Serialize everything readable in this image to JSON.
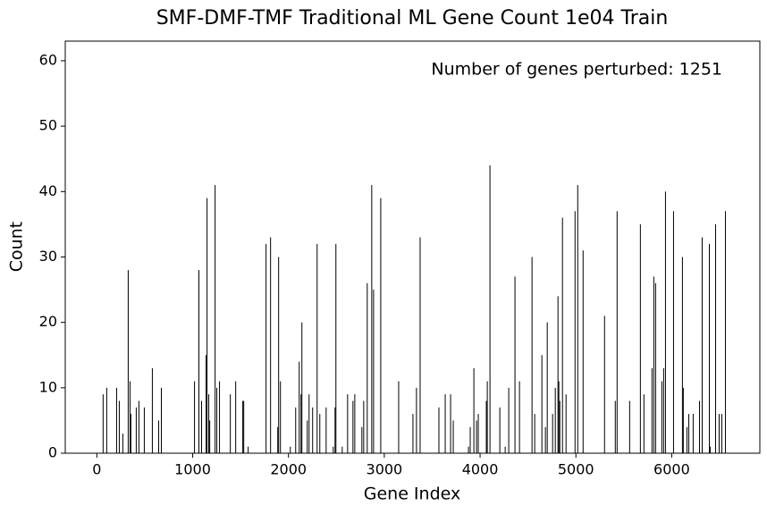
{
  "chart_data": {
    "type": "bar",
    "title": "SMF-DMF-TMF Traditional ML Gene Count 1e04 Train",
    "xlabel": "Gene Index",
    "ylabel": "Count",
    "annotation": "Number of genes perturbed: 1251",
    "color": "#000000",
    "x": [
      65,
      103,
      206,
      234,
      271,
      327,
      346,
      355,
      411,
      439,
      495,
      579,
      645,
      673,
      1019,
      1065,
      1093,
      1140,
      1150,
      1168,
      1178,
      1234,
      1252,
      1280,
      1393,
      1449,
      1523,
      1533,
      1579,
      1766,
      1813,
      1888,
      1897,
      1916,
      2019,
      2075,
      2112,
      2131,
      2140,
      2196,
      2215,
      2252,
      2299,
      2327,
      2393,
      2467,
      2486,
      2495,
      2561,
      2617,
      2673,
      2692,
      2766,
      2785,
      2822,
      2869,
      2888,
      2963,
      3150,
      3299,
      3336,
      3374,
      3570,
      3636,
      3692,
      3720,
      3879,
      3897,
      3935,
      3963,
      3981,
      4065,
      4075,
      4103,
      4206,
      4262,
      4299,
      4364,
      4411,
      4542,
      4570,
      4645,
      4682,
      4701,
      4757,
      4785,
      4813,
      4822,
      4832,
      4860,
      4897,
      4991,
      5019,
      5075,
      5299,
      5411,
      5430,
      5561,
      5673,
      5710,
      5794,
      5813,
      5832,
      5897,
      5916,
      5935,
      6019,
      6112,
      6121,
      6159,
      6178,
      6224,
      6290,
      6318,
      6393,
      6402,
      6458,
      6495,
      6523,
      6561
    ],
    "values": [
      9,
      10,
      10,
      8,
      3,
      28,
      11,
      6,
      7,
      8,
      7,
      13,
      5,
      10,
      11,
      28,
      8,
      15,
      39,
      9,
      5,
      41,
      10,
      11,
      9,
      11,
      8,
      8,
      1,
      32,
      33,
      4,
      30,
      11,
      1,
      7,
      14,
      9,
      20,
      5,
      9,
      7,
      32,
      6,
      7,
      1,
      7,
      32,
      1,
      9,
      8,
      9,
      4,
      8,
      26,
      41,
      25,
      39,
      11,
      6,
      10,
      33,
      7,
      9,
      9,
      5,
      1,
      4,
      13,
      5,
      6,
      8,
      11,
      44,
      7,
      1,
      10,
      27,
      11,
      30,
      6,
      15,
      4,
      20,
      6,
      10,
      24,
      11,
      8,
      36,
      9,
      37,
      41,
      31,
      21,
      8,
      37,
      8,
      35,
      9,
      13,
      27,
      26,
      11,
      13,
      40,
      37,
      30,
      10,
      4,
      6,
      6,
      8,
      33,
      32,
      1,
      35,
      6,
      6,
      37
    ],
    "xlim": [
      -330,
      6920
    ],
    "ylim": [
      0,
      63
    ],
    "xticks": [
      0,
      1000,
      2000,
      3000,
      4000,
      5000,
      6000
    ],
    "yticks": [
      0,
      10,
      20,
      30,
      40,
      50,
      60
    ]
  }
}
